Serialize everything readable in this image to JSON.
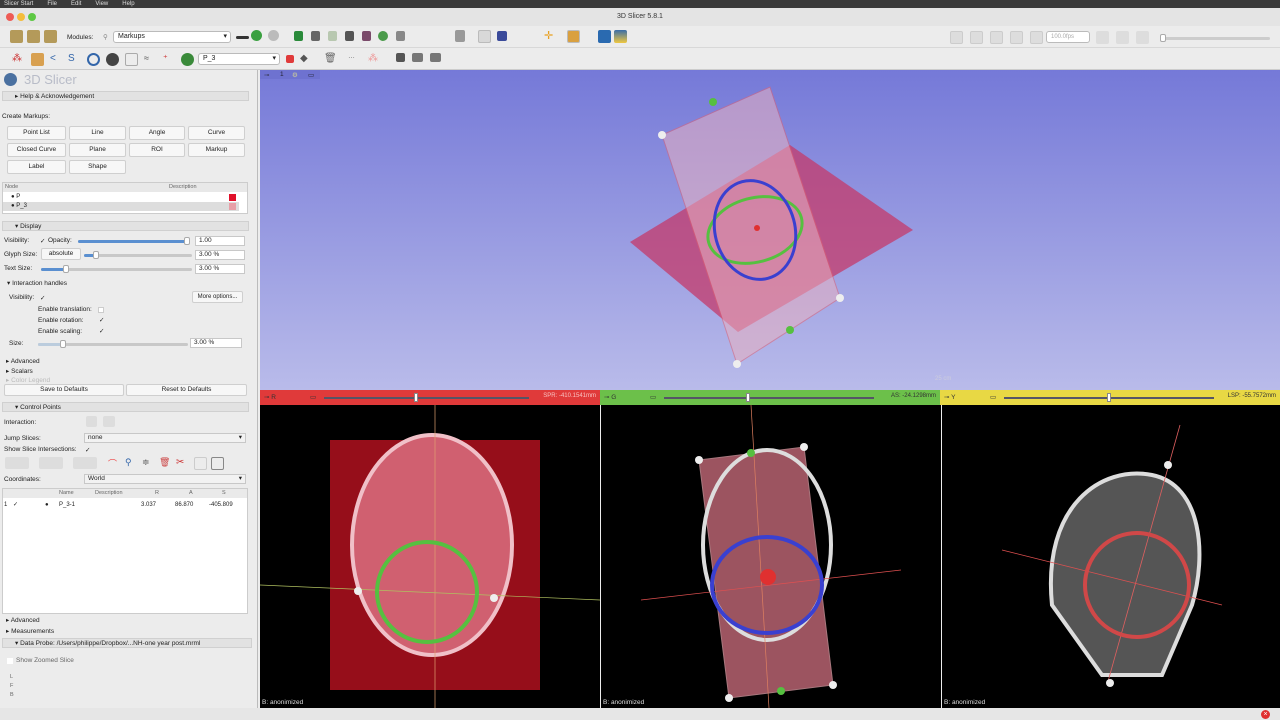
{
  "menubar": {
    "items": [
      "Slicer Start",
      "File",
      "Edit",
      "View",
      "Help"
    ]
  },
  "window": {
    "title": "3D Slicer 5.8.1"
  },
  "toolbar": {
    "modules_label": "Modules:",
    "module_selected": "Markups",
    "markup_node": "P_3",
    "fps": "100.0fps"
  },
  "panel": {
    "logo_text": "3D Slicer",
    "help": "Help & Acknowledgement",
    "create_label": "Create Markups:",
    "create_buttons": [
      "Point List",
      "Line",
      "Angle",
      "Curve",
      "Closed Curve",
      "Plane",
      "ROI",
      "Markup",
      "Label",
      "Shape"
    ],
    "node_table": {
      "headers": [
        "Node",
        "Description"
      ],
      "rows": [
        {
          "name": "P",
          "color": "#e0102a"
        },
        {
          "name": "P_3",
          "color": "#e8a0a8"
        }
      ]
    },
    "display": {
      "title": "Display",
      "visibility": "Visibility:",
      "opacity": "Opacity:",
      "opacity_value": "1.00",
      "opacity_level": 1.0,
      "glyph_size": "Glyph Size:",
      "glyph_mode": "absolute",
      "glyph_value": "3.00 %",
      "text_size": "Text Size:",
      "text_value": "3.00 %"
    },
    "interaction": {
      "title": "Interaction handles",
      "visibility": "Visibility:",
      "more": "More options...",
      "translation": "Enable translation:",
      "translation_checked": false,
      "rotation": "Enable rotation:",
      "rotation_checked": true,
      "scaling": "Enable scaling:",
      "scaling_checked": true,
      "size": "Size:",
      "size_value": "3.00 %"
    },
    "advanced": "Advanced",
    "scalars": "Scalars",
    "color_legend": "Color Legend",
    "save_defaults": "Save to Defaults",
    "reset_defaults": "Reset to Defaults",
    "control_points": {
      "title": "Control Points",
      "interaction": "Interaction:",
      "jump": "Jump Slices:",
      "jump_value": "none",
      "show_intersections": "Show Slice Intersections:",
      "coordinates": "Coordinates:",
      "coordinates_value": "World",
      "headers": [
        "Name",
        "Description",
        "R",
        "A",
        "S"
      ],
      "rows": [
        {
          "index": "1",
          "name": "P_3-1",
          "description": "",
          "r": "3.037",
          "a": "86.870",
          "s": "-405.809"
        }
      ]
    },
    "advanced2": "Advanced",
    "measurements": "Measurements",
    "data_probe": "Data Probe: /Users/philippe/Dropbox/...NH-one year post.mrml",
    "show_zoomed": "Show Zoomed Slice",
    "probe_labels": [
      "L",
      "F",
      "B"
    ]
  },
  "view3d": {
    "label": "1",
    "scale": "25 cm"
  },
  "slices": [
    {
      "name": "R",
      "offset": "SPR: -410.1541mm",
      "caption": "B: anonimized",
      "color": "#e03a3a"
    },
    {
      "name": "G",
      "offset": "AS: -24.1298mm",
      "caption": "B: anonimized",
      "color": "#6cc04a"
    },
    {
      "name": "Y",
      "offset": "LSP: -55.7572mm",
      "caption": "B: anonimized",
      "color": "#e8d844"
    }
  ]
}
